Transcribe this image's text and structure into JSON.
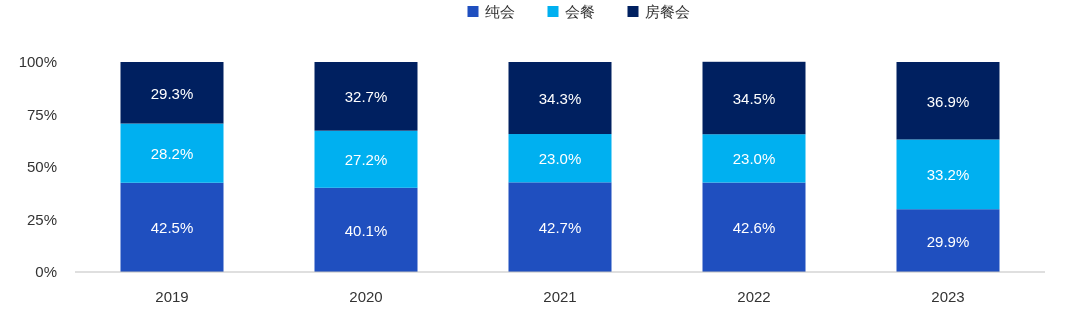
{
  "chart_data": {
    "type": "bar",
    "stacked": true,
    "categories": [
      "2019",
      "2020",
      "2021",
      "2022",
      "2023"
    ],
    "ylim": [
      0,
      100
    ],
    "yticks": [
      {
        "value": 0,
        "label": "0%"
      },
      {
        "value": 25,
        "label": "25%"
      },
      {
        "value": 50,
        "label": "50%"
      },
      {
        "value": 75,
        "label": "75%"
      },
      {
        "value": 100,
        "label": "100%"
      }
    ],
    "grid": false,
    "legend": "top",
    "series": [
      {
        "name": "纯会",
        "color": "#1f4fbf",
        "values": [
          42.5,
          40.1,
          42.7,
          42.6,
          29.9
        ],
        "value_labels": [
          "42.5%",
          "40.1%",
          "42.7%",
          "42.6%",
          "29.9%"
        ]
      },
      {
        "name": "会餐",
        "color": "#00b0f0",
        "values": [
          28.2,
          27.2,
          23.0,
          23.0,
          33.2
        ],
        "value_labels": [
          "28.2%",
          "27.2%",
          "23.0%",
          "23.0%",
          "33.2%"
        ]
      },
      {
        "name": "房餐会",
        "color": "#002060",
        "values": [
          29.3,
          32.7,
          34.3,
          34.5,
          36.9
        ],
        "value_labels": [
          "29.3%",
          "32.7%",
          "34.3%",
          "34.5%",
          "36.9%"
        ]
      }
    ]
  }
}
